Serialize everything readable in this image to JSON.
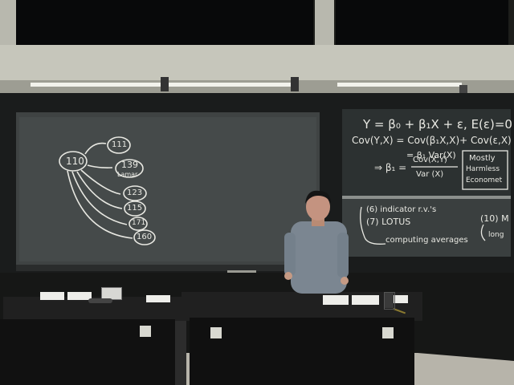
{
  "scene": "lecture hall chalkboard",
  "colors": {
    "wall": "#cfcfc4",
    "board": "#3c4040",
    "board_dark": "#2a2e2e",
    "frame": "#1c1e1e",
    "chalk": "#e8e8e2",
    "desk": "#141414",
    "floor": "#b9b7ad"
  },
  "left_board": {
    "center_node": "110",
    "nodes": [
      "111",
      "139",
      "123",
      "115",
      "171",
      "160"
    ],
    "node_139_note": "Lamar"
  },
  "right_board_upper": {
    "line1": "Y = β₀ + β₁X + ε,  E(ε)=0",
    "line2": "Cov(Y,X) = Cov(β₁X,X)+ Cov(ε,X)",
    "line3": "= β₁ Var(X)",
    "line4_lhs": "⇒ β₁ =",
    "line4_num": "Cov(X,Y)",
    "line4_den": "Var (X)",
    "box_line1": "Mostly",
    "box_line2": "Harmless",
    "box_line3": "Economet"
  },
  "right_board_lower": {
    "item1": "(6) indicator r.v.'s",
    "item2": "(7) LOTUS",
    "item3": "computing averages",
    "item4": "(10) M",
    "item5": "long"
  },
  "icons": [
    "projector-icon",
    "coffee-cup-icon",
    "power-outlet-icon"
  ]
}
